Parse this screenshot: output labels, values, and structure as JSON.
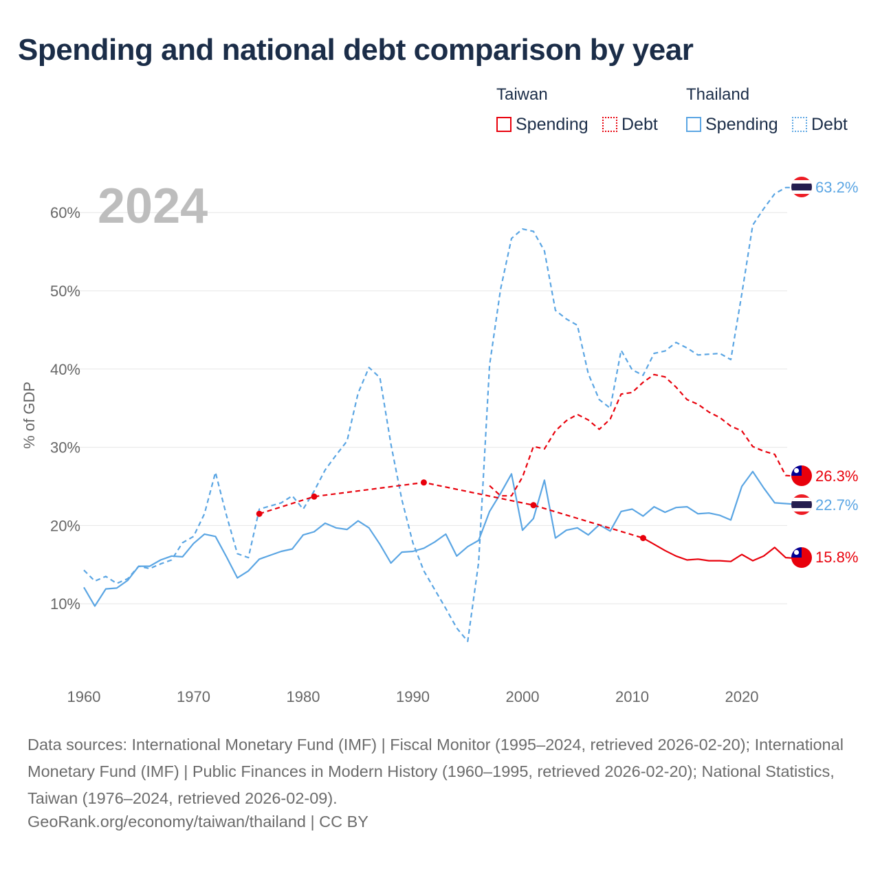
{
  "title": "Spending and national debt comparison by year",
  "legend": {
    "groups": [
      {
        "name": "Taiwan",
        "color": "#e8000b",
        "spending_label": "Spending",
        "debt_label": "Debt"
      },
      {
        "name": "Thailand",
        "color": "#5aa5e3",
        "spending_label": "Spending",
        "debt_label": "Debt"
      }
    ]
  },
  "chart_data": {
    "type": "line",
    "title": "Spending and national debt comparison by year",
    "year_label": "2024",
    "xlabel": "",
    "ylabel": "% of GDP",
    "xlim": [
      1960,
      2025.5
    ],
    "ylim": [
      0,
      66
    ],
    "x_ticks": [
      1960,
      1970,
      1980,
      1990,
      2000,
      2010,
      2020
    ],
    "y_ticks": [
      10,
      20,
      30,
      40,
      50,
      60
    ],
    "y_tick_labels": [
      "10%",
      "20%",
      "30%",
      "40%",
      "50%",
      "60%"
    ],
    "grid": true,
    "series": [
      {
        "name": "Thailand Debt",
        "country": "Thailand",
        "metric": "Debt",
        "color": "#5aa5e3",
        "dashed": true,
        "end_label": "63.2%",
        "points": [
          [
            1960,
            14.3
          ],
          [
            1961,
            12.9
          ],
          [
            1962,
            13.5
          ],
          [
            1963,
            12.6
          ],
          [
            1964,
            13.2
          ],
          [
            1965,
            14.8
          ],
          [
            1966,
            14.5
          ],
          [
            1967,
            15.1
          ],
          [
            1968,
            15.6
          ],
          [
            1969,
            17.8
          ],
          [
            1970,
            18.6
          ],
          [
            1971,
            21.5
          ],
          [
            1972,
            26.8
          ],
          [
            1973,
            21.3
          ],
          [
            1974,
            16.4
          ],
          [
            1975,
            15.9
          ],
          [
            1976,
            22.1
          ],
          [
            1977,
            22.5
          ],
          [
            1978,
            22.9
          ],
          [
            1979,
            23.8
          ],
          [
            1980,
            22.1
          ],
          [
            1981,
            24.4
          ],
          [
            1982,
            27.1
          ],
          [
            1983,
            29
          ],
          [
            1984,
            30.8
          ],
          [
            1985,
            36.9
          ],
          [
            1986,
            40.2
          ],
          [
            1987,
            38.9
          ],
          [
            1988,
            30.4
          ],
          [
            1989,
            23.3
          ],
          [
            1990,
            17.8
          ],
          [
            1991,
            14.2
          ],
          [
            1992,
            11.8
          ],
          [
            1993,
            9.4
          ],
          [
            1994,
            6.9
          ],
          [
            1995,
            5.2
          ],
          [
            1996,
            15.3
          ],
          [
            1997,
            40.5
          ],
          [
            1998,
            50.2
          ],
          [
            1999,
            56.7
          ],
          [
            2000,
            57.9
          ],
          [
            2001,
            57.6
          ],
          [
            2002,
            55.1
          ],
          [
            2003,
            47.5
          ],
          [
            2004,
            46.4
          ],
          [
            2005,
            45.6
          ],
          [
            2006,
            39.4
          ],
          [
            2007,
            36.1
          ],
          [
            2008,
            35
          ],
          [
            2009,
            42.4
          ],
          [
            2010,
            39.9
          ],
          [
            2011,
            39.2
          ],
          [
            2012,
            42
          ],
          [
            2013,
            42.3
          ],
          [
            2014,
            43.4
          ],
          [
            2015,
            42.7
          ],
          [
            2016,
            41.8
          ],
          [
            2017,
            41.9
          ],
          [
            2018,
            42
          ],
          [
            2019,
            41.2
          ],
          [
            2020,
            49.6
          ],
          [
            2021,
            58.4
          ],
          [
            2022,
            60.5
          ],
          [
            2023,
            62.4
          ],
          [
            2024,
            63.2
          ],
          [
            2025,
            63.2
          ]
        ]
      },
      {
        "name": "Thailand Spending",
        "country": "Thailand",
        "metric": "Spending",
        "color": "#5aa5e3",
        "dashed": false,
        "end_label": "22.7%",
        "points": [
          [
            1960,
            12.1
          ],
          [
            1961,
            9.7
          ],
          [
            1962,
            11.9
          ],
          [
            1963,
            12
          ],
          [
            1964,
            13
          ],
          [
            1965,
            14.8
          ],
          [
            1966,
            14.8
          ],
          [
            1967,
            15.6
          ],
          [
            1968,
            16.1
          ],
          [
            1969,
            16
          ],
          [
            1970,
            17.7
          ],
          [
            1971,
            18.9
          ],
          [
            1972,
            18.6
          ],
          [
            1973,
            16
          ],
          [
            1974,
            13.3
          ],
          [
            1975,
            14.2
          ],
          [
            1976,
            15.7
          ],
          [
            1977,
            16.2
          ],
          [
            1978,
            16.7
          ],
          [
            1979,
            17
          ],
          [
            1980,
            18.8
          ],
          [
            1981,
            19.2
          ],
          [
            1982,
            20.3
          ],
          [
            1983,
            19.7
          ],
          [
            1984,
            19.5
          ],
          [
            1985,
            20.6
          ],
          [
            1986,
            19.7
          ],
          [
            1987,
            17.6
          ],
          [
            1988,
            15.2
          ],
          [
            1989,
            16.6
          ],
          [
            1990,
            16.7
          ],
          [
            1991,
            17.1
          ],
          [
            1992,
            17.9
          ],
          [
            1993,
            18.9
          ],
          [
            1994,
            16.1
          ],
          [
            1995,
            17.3
          ],
          [
            1996,
            18.1
          ],
          [
            1997,
            21.8
          ],
          [
            1998,
            24.1
          ],
          [
            1999,
            26.6
          ],
          [
            2000,
            19.4
          ],
          [
            2001,
            20.9
          ],
          [
            2002,
            25.8
          ],
          [
            2003,
            18.4
          ],
          [
            2004,
            19.4
          ],
          [
            2005,
            19.7
          ],
          [
            2006,
            18.8
          ],
          [
            2007,
            20.1
          ],
          [
            2008,
            19.3
          ],
          [
            2009,
            21.8
          ],
          [
            2010,
            22.1
          ],
          [
            2011,
            21.2
          ],
          [
            2012,
            22.4
          ],
          [
            2013,
            21.7
          ],
          [
            2014,
            22.3
          ],
          [
            2015,
            22.4
          ],
          [
            2016,
            21.5
          ],
          [
            2017,
            21.6
          ],
          [
            2018,
            21.3
          ],
          [
            2019,
            20.7
          ],
          [
            2020,
            25
          ],
          [
            2021,
            26.9
          ],
          [
            2022,
            24.8
          ],
          [
            2023,
            22.9
          ],
          [
            2024,
            22.8
          ],
          [
            2025,
            22.7
          ]
        ]
      },
      {
        "name": "Taiwan Debt",
        "country": "Taiwan",
        "metric": "Debt",
        "color": "#e8000b",
        "dashed": true,
        "end_label": "26.3%",
        "markers": [
          1976,
          1981,
          1991,
          2001,
          2011
        ],
        "points": [
          [
            1976,
            21.5
          ],
          [
            1981,
            23.7
          ],
          [
            1991,
            25.5
          ],
          [
            2001,
            22.6
          ],
          [
            2011,
            18.4
          ]
        ],
        "points_later": [
          [
            1997,
            25.1
          ],
          [
            1998,
            23.8
          ],
          [
            1999,
            23.8
          ],
          [
            2000,
            26.2
          ],
          [
            2001,
            30.1
          ],
          [
            2002,
            29.8
          ],
          [
            2003,
            32.1
          ],
          [
            2004,
            33.4
          ],
          [
            2005,
            34.2
          ],
          [
            2006,
            33.5
          ],
          [
            2007,
            32.3
          ],
          [
            2008,
            33.6
          ],
          [
            2009,
            36.8
          ],
          [
            2010,
            37
          ],
          [
            2011,
            38.3
          ],
          [
            2012,
            39.3
          ],
          [
            2013,
            39
          ],
          [
            2014,
            37.7
          ],
          [
            2015,
            36.1
          ],
          [
            2016,
            35.5
          ],
          [
            2017,
            34.5
          ],
          [
            2018,
            33.8
          ],
          [
            2019,
            32.7
          ],
          [
            2020,
            32.1
          ],
          [
            2021,
            30.1
          ],
          [
            2022,
            29.5
          ],
          [
            2023,
            29.1
          ],
          [
            2024,
            26.4
          ],
          [
            2025,
            26.3
          ]
        ]
      },
      {
        "name": "Taiwan Spending",
        "country": "Taiwan",
        "metric": "Spending",
        "color": "#e8000b",
        "dashed": false,
        "end_label": "15.8%",
        "points": [
          [
            2011,
            18.4
          ],
          [
            2012,
            17.6
          ],
          [
            2013,
            16.8
          ],
          [
            2014,
            16.1
          ],
          [
            2015,
            15.6
          ],
          [
            2016,
            15.7
          ],
          [
            2017,
            15.5
          ],
          [
            2018,
            15.5
          ],
          [
            2019,
            15.4
          ],
          [
            2020,
            16.3
          ],
          [
            2021,
            15.5
          ],
          [
            2022,
            16.1
          ],
          [
            2023,
            17.2
          ],
          [
            2024,
            15.9
          ],
          [
            2025,
            15.8
          ]
        ]
      }
    ]
  },
  "sources": "Data sources: International Monetary Fund (IMF) | Fiscal Monitor (1995–2024, retrieved 2026-02-20); International Monetary Fund (IMF) | Public Finances in Modern History (1960–1995, retrieved 2026-02-20); National Statistics, Taiwan (1976–2024, retrieved 2026-02-09).",
  "attribution": "GeoRank.org/economy/taiwan/thailand | CC BY"
}
